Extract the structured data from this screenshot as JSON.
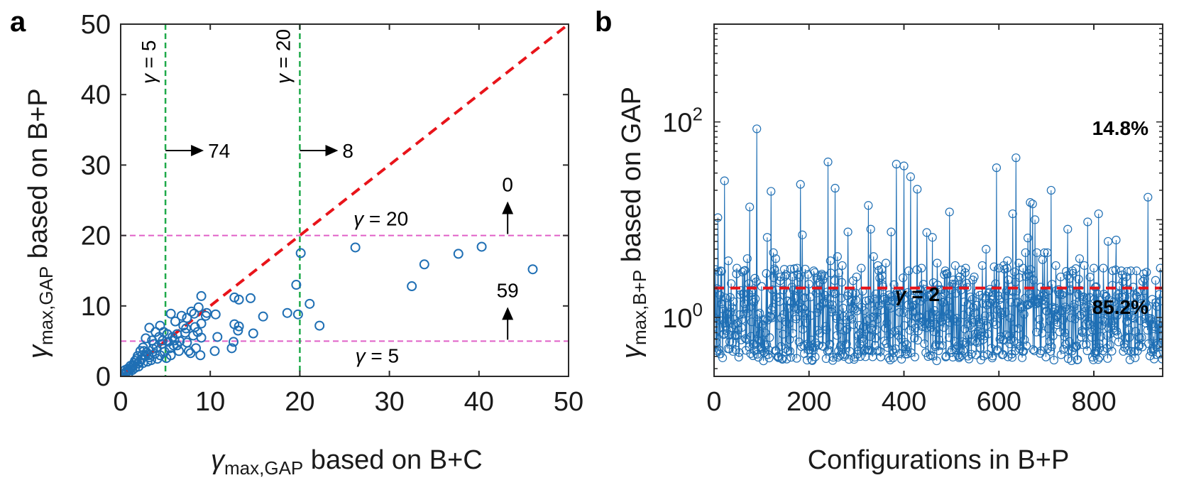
{
  "colors": {
    "marker": "#1f6fb4",
    "diagonal": "#e8141a",
    "green": "#1faa4a",
    "pink": "#e060c8",
    "yellow": "#f0e020",
    "threshold": "#e8141a"
  },
  "panels": {
    "a": "a",
    "b": "b"
  },
  "chart_data": [
    {
      "type": "scatter",
      "panel": "a",
      "xlabel": {
        "main": "γ",
        "sub": "max,GAP",
        "rest": " based on B+C"
      },
      "ylabel": {
        "main": "γ",
        "sub": "max,GAP",
        "rest": " based on B+P"
      },
      "xlim": [
        0,
        50
      ],
      "ylim": [
        0,
        50
      ],
      "xticks": [
        "0",
        "10",
        "20",
        "30",
        "40",
        "50"
      ],
      "yticks": [
        "0",
        "10",
        "20",
        "30",
        "40",
        "50"
      ],
      "diagonal": "y = x",
      "vlines": [
        {
          "x": 5,
          "label": "γ = 5",
          "count": "74"
        },
        {
          "x": 20,
          "label": "γ = 20",
          "count": "8"
        }
      ],
      "hlines": [
        {
          "y": 5,
          "label": "γ = 5",
          "count": "59"
        },
        {
          "y": 20,
          "label": "γ = 20",
          "count": "0"
        }
      ],
      "points": [
        [
          26.2,
          18.3
        ],
        [
          32.5,
          12.8
        ],
        [
          33.9,
          15.9
        ],
        [
          37.7,
          17.4
        ],
        [
          40.3,
          18.4
        ],
        [
          46.0,
          15.2
        ],
        [
          20.1,
          17.5
        ],
        [
          19.6,
          13.0
        ],
        [
          18.6,
          9.0
        ],
        [
          19.8,
          8.8
        ],
        [
          21.1,
          10.3
        ],
        [
          22.2,
          7.2
        ],
        [
          15.9,
          8.5
        ],
        [
          14.5,
          11.1
        ],
        [
          14.8,
          6.1
        ],
        [
          13.2,
          10.9
        ],
        [
          12.7,
          11.2
        ],
        [
          13.2,
          7.1
        ],
        [
          12.7,
          7.4
        ],
        [
          13.1,
          6.5
        ],
        [
          12.4,
          4.0
        ],
        [
          12.6,
          4.9
        ],
        [
          10.5,
          3.6
        ],
        [
          10.8,
          5.6
        ],
        [
          9.0,
          11.4
        ],
        [
          8.7,
          9.8
        ],
        [
          8.2,
          8.9
        ],
        [
          9.5,
          8.6
        ],
        [
          10.6,
          8.8
        ],
        [
          9.0,
          7.5
        ],
        [
          8.1,
          5.8
        ],
        [
          8.6,
          6.3
        ],
        [
          8.4,
          4.0
        ],
        [
          7.6,
          3.6
        ],
        [
          7.8,
          3.3
        ],
        [
          9.0,
          5.5
        ],
        [
          8.9,
          3.0
        ],
        [
          7.4,
          4.8
        ],
        [
          6.8,
          8.6
        ],
        [
          6.1,
          7.8
        ],
        [
          5.6,
          8.9
        ],
        [
          7.2,
          6.2
        ],
        [
          6.3,
          6.0
        ],
        [
          5.9,
          4.4
        ],
        [
          6.5,
          3.6
        ],
        [
          5.6,
          3.0
        ],
        [
          4.8,
          6.3
        ],
        [
          4.3,
          5.6
        ],
        [
          3.9,
          6.3
        ],
        [
          3.2,
          6.9
        ],
        [
          3.5,
          5.1
        ],
        [
          2.8,
          5.4
        ],
        [
          4.6,
          4.6
        ],
        [
          4.9,
          3.5
        ],
        [
          3.6,
          3.9
        ],
        [
          4.1,
          2.5
        ],
        [
          3.8,
          3.2
        ],
        [
          2.9,
          3.4
        ],
        [
          2.5,
          4.1
        ],
        [
          2.2,
          3.6
        ],
        [
          2.7,
          2.9
        ],
        [
          3.2,
          2.7
        ],
        [
          1.9,
          2.9
        ],
        [
          2.3,
          2.4
        ],
        [
          1.6,
          2.2
        ],
        [
          1.9,
          1.8
        ],
        [
          2.5,
          1.9
        ],
        [
          3.0,
          2.1
        ],
        [
          1.4,
          1.6
        ],
        [
          1.2,
          1.2
        ],
        [
          1.6,
          1.2
        ],
        [
          1.0,
          1.0
        ],
        [
          0.9,
          0.8
        ],
        [
          0.7,
          0.7
        ],
        [
          0.6,
          0.6
        ],
        [
          0.8,
          1.1
        ],
        [
          1.3,
          0.9
        ],
        [
          1.1,
          1.5
        ],
        [
          2.0,
          1.4
        ],
        [
          1.8,
          2.5
        ],
        [
          2.4,
          3.0
        ],
        [
          3.4,
          2.3
        ],
        [
          4.4,
          3.0
        ],
        [
          5.1,
          2.6
        ],
        [
          5.3,
          4.9
        ],
        [
          6.0,
          5.1
        ],
        [
          5.2,
          6.0
        ],
        [
          4.4,
          7.2
        ],
        [
          3.7,
          4.6
        ],
        [
          2.6,
          3.6
        ],
        [
          0.5,
          0.5
        ],
        [
          0.9,
          0.5
        ],
        [
          0.5,
          0.9
        ],
        [
          1.5,
          1.9
        ],
        [
          2.1,
          2.1
        ],
        [
          3.1,
          3.0
        ],
        [
          4.0,
          4.1
        ],
        [
          4.7,
          5.1
        ],
        [
          5.8,
          5.6
        ],
        [
          7.0,
          7.2
        ],
        [
          7.4,
          8.3
        ],
        [
          6.6,
          5.0
        ],
        [
          7.3,
          6.8
        ],
        [
          6.3,
          4.4
        ],
        [
          8.3,
          7.0
        ],
        [
          7.9,
          9.2
        ],
        [
          9.6,
          9.0
        ],
        [
          5.5,
          4.0
        ]
      ]
    },
    {
      "type": "line",
      "panel": "b",
      "xlabel": "Configurations in B+P",
      "ylabel": {
        "main": "γ",
        "sub": "max,B+P",
        "rest": " based on GAP"
      },
      "yscale": "log",
      "xlim": [
        0,
        945
      ],
      "ylim": [
        0.25,
        1000
      ],
      "xticks": [
        "0",
        "200",
        "400",
        "600",
        "800"
      ],
      "yticks": [
        {
          "base": "10",
          "exp": "0",
          "value": 1
        },
        {
          "base": "10",
          "exp": "2",
          "value": 100
        }
      ],
      "threshold": {
        "y": 2,
        "label": "γ = 2"
      },
      "above_pct": "14.8%",
      "below_pct": "85.2%",
      "n_points": 945,
      "seed": 7,
      "peaks": [
        [
          8,
          10.5
        ],
        [
          14,
          3.0
        ],
        [
          22,
          25.0
        ],
        [
          30,
          3.8
        ],
        [
          48,
          3.2
        ],
        [
          63,
          3.0
        ],
        [
          70,
          4.0
        ],
        [
          75,
          13.5
        ],
        [
          90,
          85.0
        ],
        [
          112,
          6.6
        ],
        [
          120,
          19.5
        ],
        [
          125,
          4.6
        ],
        [
          130,
          4.0
        ],
        [
          140,
          2.6
        ],
        [
          165,
          2.6
        ],
        [
          175,
          3.2
        ],
        [
          182,
          23.0
        ],
        [
          186,
          7.0
        ],
        [
          200,
          2.2
        ],
        [
          210,
          3.0
        ],
        [
          225,
          2.6
        ],
        [
          240,
          39.0
        ],
        [
          245,
          3.8
        ],
        [
          255,
          21.0
        ],
        [
          260,
          4.2
        ],
        [
          270,
          3.4
        ],
        [
          282,
          7.5
        ],
        [
          300,
          2.6
        ],
        [
          310,
          3.2
        ],
        [
          325,
          14.0
        ],
        [
          330,
          8.0
        ],
        [
          336,
          4.2
        ],
        [
          345,
          3.4
        ],
        [
          362,
          3.6
        ],
        [
          373,
          7.5
        ],
        [
          384,
          37.0
        ],
        [
          400,
          35.5
        ],
        [
          410,
          3.0
        ],
        [
          414,
          27.5
        ],
        [
          428,
          20.5
        ],
        [
          437,
          3.2
        ],
        [
          448,
          7.4
        ],
        [
          460,
          6.6
        ],
        [
          470,
          3.6
        ],
        [
          487,
          3.0
        ],
        [
          496,
          12.0
        ],
        [
          508,
          3.4
        ],
        [
          515,
          2.4
        ],
        [
          530,
          3.2
        ],
        [
          548,
          2.6
        ],
        [
          565,
          3.4
        ],
        [
          573,
          5.0
        ],
        [
          590,
          3.3
        ],
        [
          595,
          34.0
        ],
        [
          610,
          3.4
        ],
        [
          618,
          3.8
        ],
        [
          629,
          11.5
        ],
        [
          636,
          43.0
        ],
        [
          642,
          3.6
        ],
        [
          651,
          3.2
        ],
        [
          656,
          4.6
        ],
        [
          661,
          6.5
        ],
        [
          666,
          15.0
        ],
        [
          671,
          14.5
        ],
        [
          676,
          10.0
        ],
        [
          680,
          4.6
        ],
        [
          692,
          3.9
        ],
        [
          696,
          4.6
        ],
        [
          702,
          4.6
        ],
        [
          710,
          20.0
        ],
        [
          720,
          3.4
        ],
        [
          730,
          2.6
        ],
        [
          745,
          8.0
        ],
        [
          755,
          3.0
        ],
        [
          770,
          4.0
        ],
        [
          780,
          3.4
        ],
        [
          787,
          9.5
        ],
        [
          800,
          3.2
        ],
        [
          810,
          11.5
        ],
        [
          820,
          3.2
        ],
        [
          830,
          6.0
        ],
        [
          847,
          6.2
        ],
        [
          858,
          3.0
        ],
        [
          868,
          2.6
        ],
        [
          878,
          3.0
        ],
        [
          890,
          3.0
        ],
        [
          905,
          2.8
        ],
        [
          914,
          17.0
        ],
        [
          930,
          2.4
        ],
        [
          940,
          3.2
        ]
      ]
    }
  ]
}
